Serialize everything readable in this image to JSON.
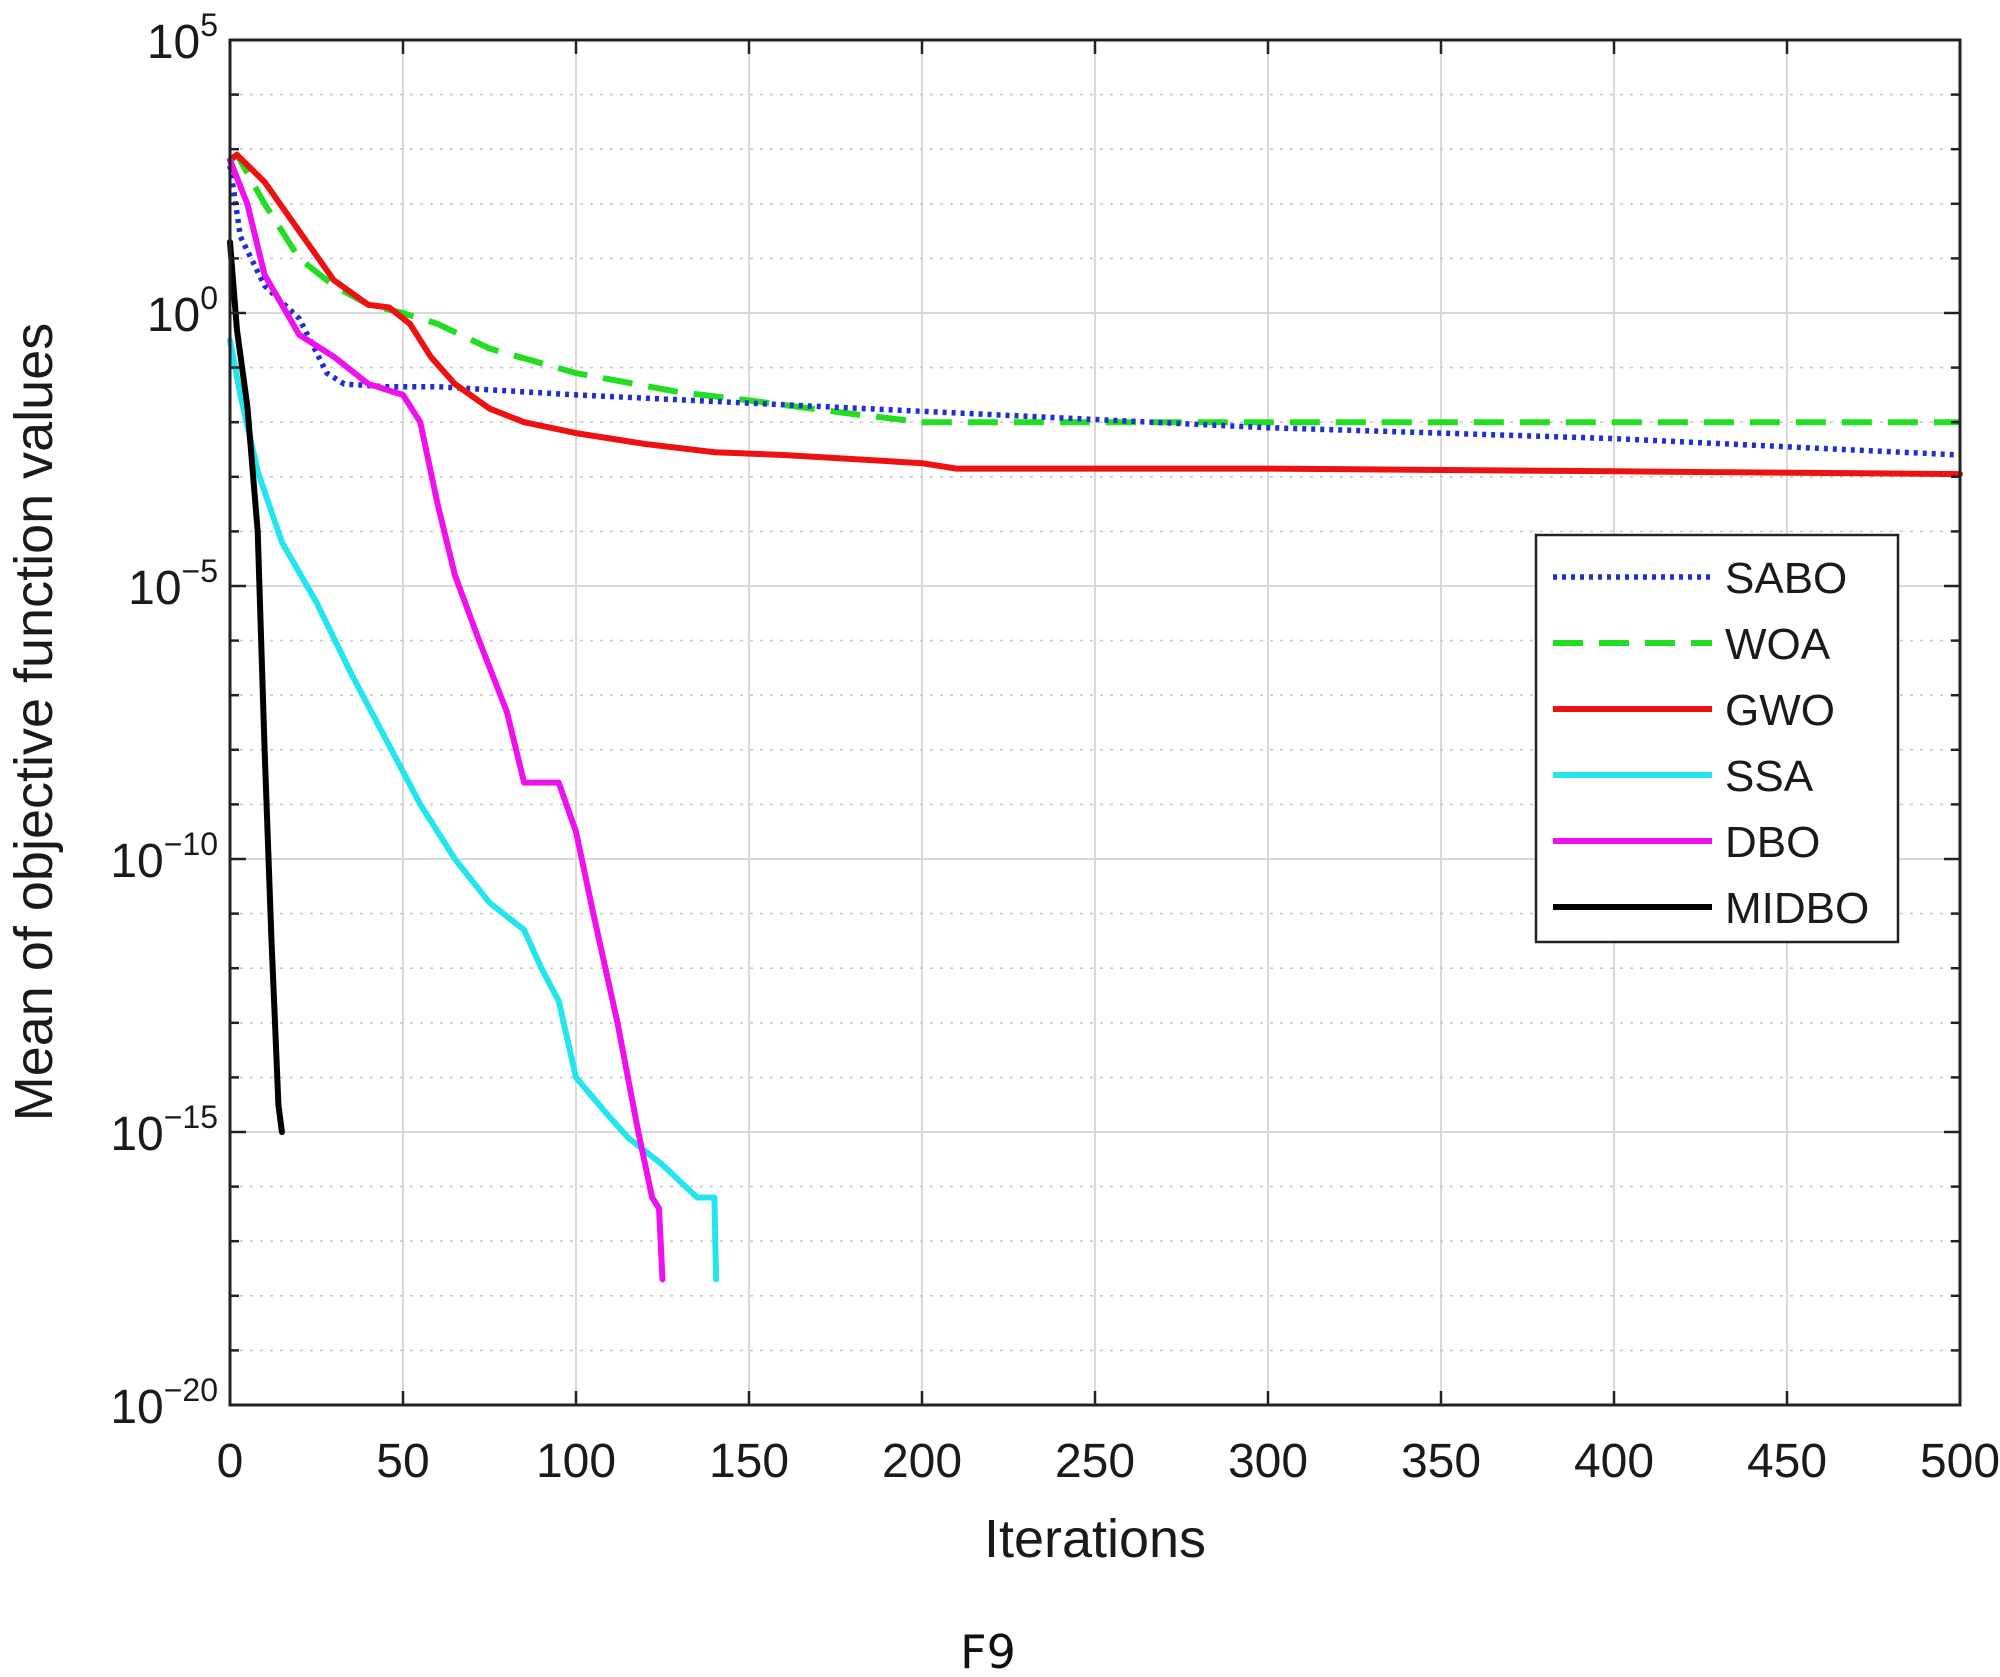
{
  "chart_data": {
    "type": "line",
    "title": "",
    "caption": "F9",
    "xlabel": "Iterations",
    "ylabel": "Mean of objective function values",
    "xlim": [
      0,
      500
    ],
    "ylim_log10": [
      -20,
      5
    ],
    "yscale": "log",
    "grid": true,
    "legend_position": "right-middle",
    "x_ticks": [
      "0",
      "50",
      "100",
      "150",
      "200",
      "250",
      "300",
      "350",
      "400",
      "450",
      "500"
    ],
    "y_ticks": [
      {
        "base": "10",
        "exp": "5"
      },
      {
        "base": "10",
        "exp": "0"
      },
      {
        "base": "10",
        "exp": "-5"
      },
      {
        "base": "10",
        "exp": "-10"
      },
      {
        "base": "10",
        "exp": "-15"
      },
      {
        "base": "10",
        "exp": "-20"
      }
    ],
    "series": [
      {
        "name": "SABO",
        "color": "#1f2fd0",
        "style": "dotted",
        "x": [
          0,
          3,
          10,
          20,
          28,
          33,
          45,
          60,
          100,
          150,
          200,
          250,
          300,
          350,
          400,
          450,
          500
        ],
        "log10y": [
          2.7,
          1.4,
          0.5,
          -0.1,
          -1.1,
          -1.3,
          -1.35,
          -1.35,
          -1.5,
          -1.65,
          -1.8,
          -1.95,
          -2.1,
          -2.2,
          -2.3,
          -2.45,
          -2.6
        ]
      },
      {
        "name": "WOA",
        "color": "#22dd22",
        "style": "dashed",
        "x": [
          0,
          2,
          10,
          20,
          30,
          40,
          50,
          60,
          75,
          100,
          130,
          150,
          180,
          200,
          220,
          300,
          500
        ],
        "log10y": [
          2.8,
          2.9,
          2.0,
          1.0,
          0.5,
          0.15,
          0.0,
          -0.2,
          -0.65,
          -1.1,
          -1.45,
          -1.6,
          -1.85,
          -2.0,
          -2.0,
          -2.0,
          -2.0
        ]
      },
      {
        "name": "GWO",
        "color": "#ee1111",
        "style": "solid",
        "x": [
          0,
          2,
          10,
          20,
          30,
          40,
          46,
          52,
          58,
          65,
          75,
          85,
          100,
          120,
          140,
          160,
          200,
          210,
          250,
          300,
          400,
          500
        ],
        "log10y": [
          2.8,
          2.9,
          2.4,
          1.5,
          0.6,
          0.15,
          0.1,
          -0.2,
          -0.8,
          -1.3,
          -1.75,
          -2.0,
          -2.2,
          -2.4,
          -2.55,
          -2.6,
          -2.75,
          -2.85,
          -2.85,
          -2.85,
          -2.9,
          -2.95
        ]
      },
      {
        "name": "SSA",
        "color": "#22e5ee",
        "style": "solid",
        "x": [
          0,
          3,
          8,
          15,
          25,
          35,
          45,
          55,
          65,
          75,
          85,
          90,
          95,
          100,
          108,
          115,
          125,
          135,
          140,
          140.5
        ],
        "log10y": [
          -0.5,
          -1.5,
          -2.9,
          -4.2,
          -5.3,
          -6.6,
          -7.8,
          -9.0,
          -10.0,
          -10.8,
          -11.3,
          -12.0,
          -12.6,
          -14.0,
          -14.6,
          -15.1,
          -15.6,
          -16.2,
          -16.2,
          -17.7
        ]
      },
      {
        "name": "DBO",
        "color": "#ee11ee",
        "style": "solid",
        "x": [
          0,
          5,
          10,
          20,
          30,
          40,
          50,
          55,
          60,
          65,
          72,
          80,
          85,
          95,
          100,
          105,
          112,
          118,
          122,
          124,
          125
        ],
        "log10y": [
          2.8,
          2.0,
          0.7,
          -0.4,
          -0.8,
          -1.3,
          -1.5,
          -2.0,
          -3.5,
          -4.8,
          -6.0,
          -7.3,
          -8.6,
          -8.6,
          -9.5,
          -11.0,
          -13.0,
          -15.0,
          -16.2,
          -16.4,
          -17.7
        ]
      },
      {
        "name": "MIDBO",
        "color": "#000000",
        "style": "solid",
        "x": [
          0,
          2,
          5,
          8,
          10,
          12,
          13,
          14,
          15
        ],
        "log10y": [
          1.3,
          -0.3,
          -1.7,
          -4.0,
          -8.0,
          -11.5,
          -13.0,
          -14.5,
          -15.0
        ]
      }
    ]
  }
}
